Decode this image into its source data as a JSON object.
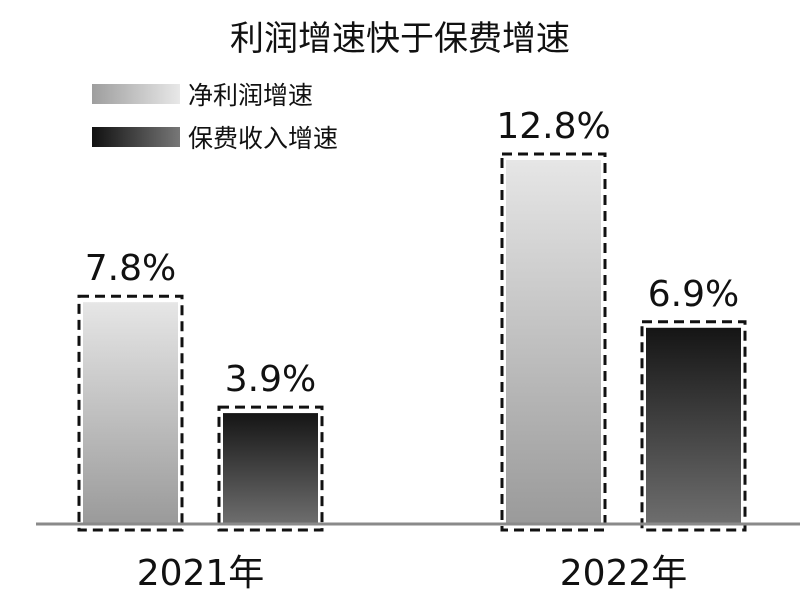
{
  "chart_data": {
    "type": "bar",
    "title": "利润增速快于保费增速",
    "categories": [
      "2021年",
      "2022年"
    ],
    "series": [
      {
        "name": "净利润增速",
        "values": [
          7.8,
          12.8
        ],
        "labels": [
          "7.8%",
          "12.8%"
        ],
        "color": "#c8c8c8"
      },
      {
        "name": "保费收入增速",
        "values": [
          3.9,
          6.9
        ],
        "labels": [
          "3.9%",
          "6.9%"
        ],
        "color": "#2a2a2a"
      }
    ],
    "ylim": [
      0,
      13.5
    ],
    "grid": false,
    "legend": "top-left",
    "bar_outline": "dashed"
  }
}
